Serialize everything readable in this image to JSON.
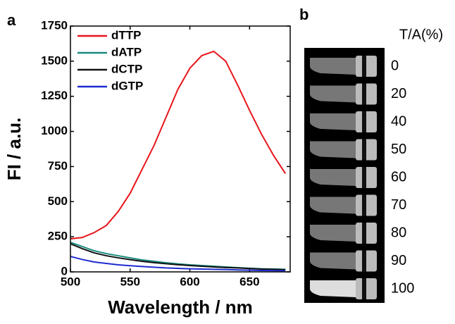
{
  "chart_data": {
    "type": "line",
    "panel_label": "a",
    "xlabel": "Wavelength / nm",
    "ylabel": "FI / a.u.",
    "x": [
      500,
      510,
      520,
      530,
      540,
      550,
      560,
      570,
      580,
      590,
      600,
      610,
      620,
      630,
      640,
      650,
      660,
      670,
      680
    ],
    "series": [
      {
        "name": "dTTP",
        "color": "#e8151b",
        "values": [
          235,
          245,
          280,
          330,
          430,
          560,
          730,
          900,
          1100,
          1300,
          1450,
          1540,
          1570,
          1500,
          1330,
          1150,
          980,
          830,
          700
        ]
      },
      {
        "name": "dATP",
        "color": "#1a8a80",
        "values": [
          210,
          180,
          150,
          130,
          115,
          100,
          85,
          75,
          65,
          57,
          50,
          45,
          40,
          35,
          30,
          26,
          22,
          20,
          18
        ]
      },
      {
        "name": "dCTP",
        "color": "#111111",
        "values": [
          200,
          165,
          135,
          115,
          100,
          87,
          75,
          66,
          58,
          51,
          45,
          40,
          35,
          31,
          28,
          24,
          20,
          18,
          15
        ]
      },
      {
        "name": "dGTP",
        "color": "#1f2bd0",
        "values": [
          110,
          88,
          70,
          60,
          50,
          44,
          38,
          33,
          28,
          25,
          22,
          20,
          18,
          16,
          14,
          12,
          10,
          9,
          8
        ]
      }
    ],
    "xlim": [
      500,
      684
    ],
    "xticks": [
      500,
      550,
      600,
      650
    ],
    "ylim": [
      0,
      1750
    ],
    "yticks": [
      0,
      250,
      500,
      750,
      1000,
      1250,
      1500,
      1750
    ],
    "legend": "upper-left"
  },
  "panel_b": {
    "panel_label": "b",
    "header": "T/A(%)",
    "labels": [
      "0",
      "20",
      "40",
      "50",
      "60",
      "70",
      "80",
      "90",
      "100"
    ]
  }
}
